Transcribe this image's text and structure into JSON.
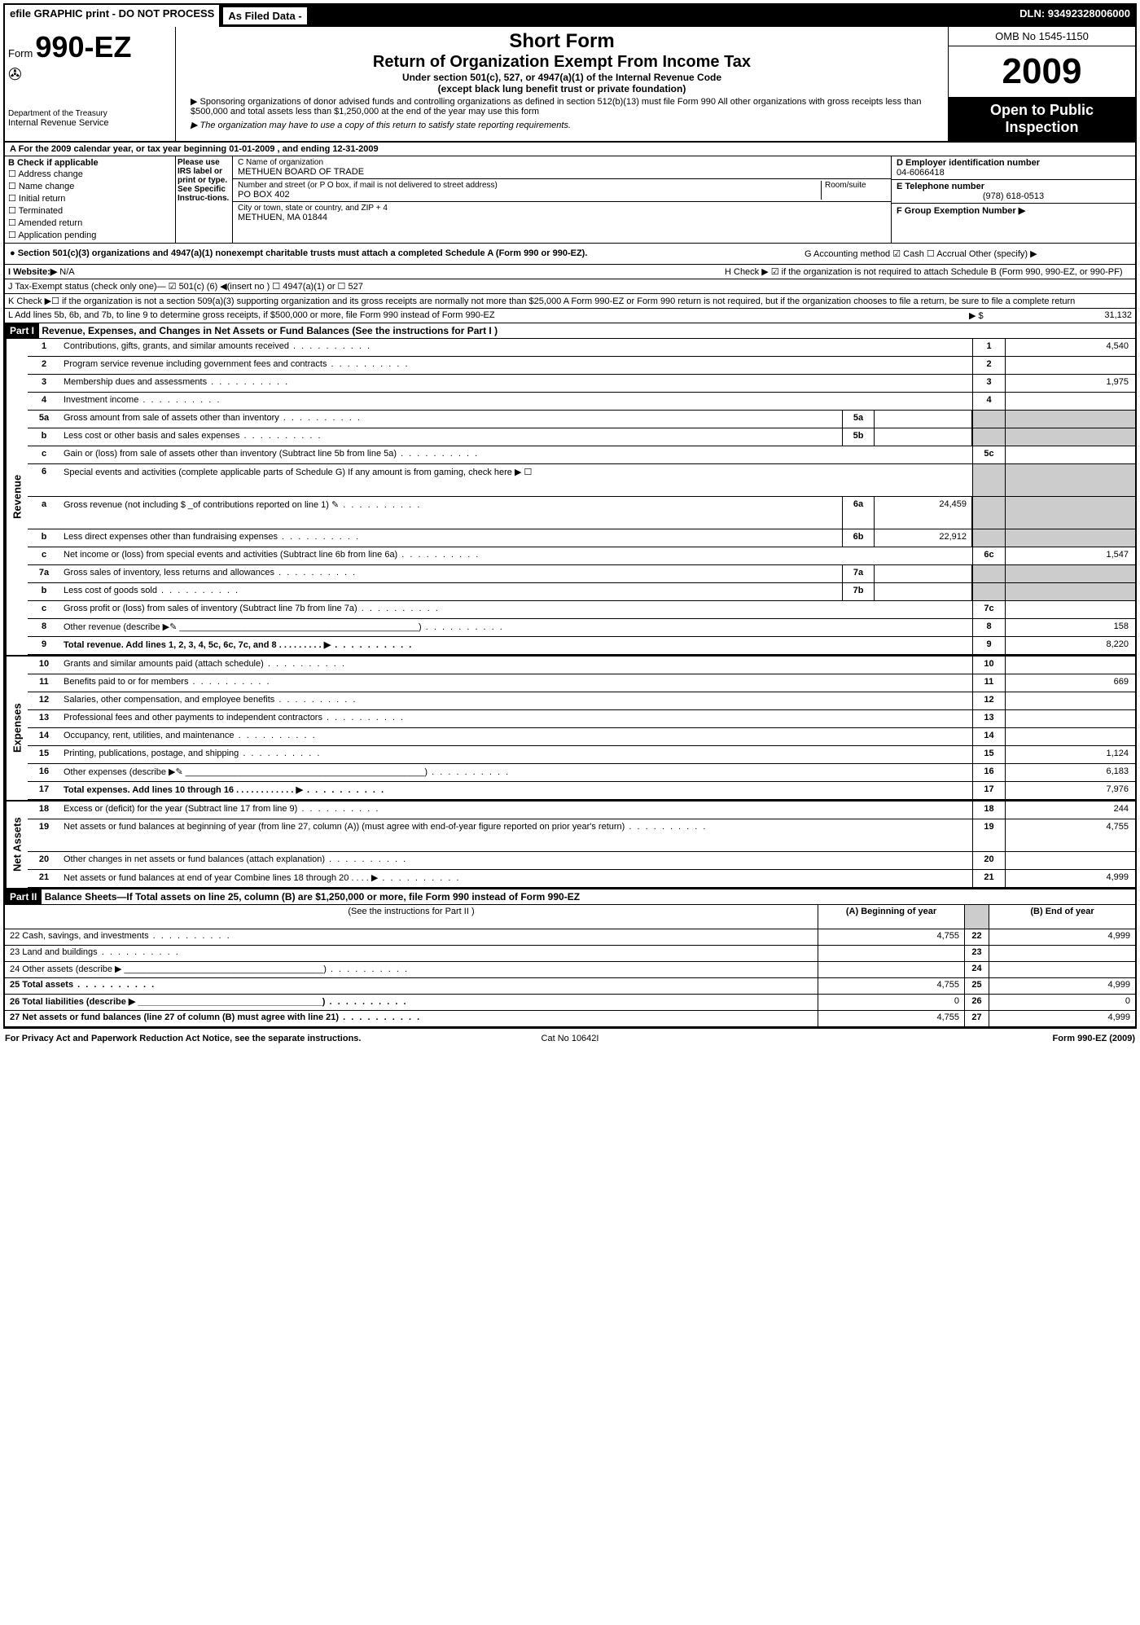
{
  "topbar": {
    "efile": "efile GRAPHIC print - DO NOT PROCESS",
    "asfiled": "As Filed Data -",
    "dln": "DLN: 93492328006000"
  },
  "header": {
    "form_prefix": "Form",
    "form_no": "990-EZ",
    "dept1": "Department of the Treasury",
    "dept2": "Internal Revenue Service",
    "title1": "Short Form",
    "title2": "Return of Organization Exempt From Income Tax",
    "sub1": "Under section 501(c), 527, or 4947(a)(1) of the Internal Revenue Code",
    "sub2": "(except black lung benefit trust or private foundation)",
    "note1": "▶ Sponsoring organizations of donor advised funds and controlling organizations as defined in section 512(b)(13) must file Form 990  All other organizations with gross receipts less than $500,000 and total assets less than $1,250,000 at the end of the year may use this form",
    "note2": "▶ The organization may have to use a copy of this return to satisfy state reporting requirements.",
    "omb": "OMB No  1545-1150",
    "year": "2009",
    "open": "Open to Public Inspection"
  },
  "row_a": "A  For the 2009 calendar year, or tax year beginning 01-01-2009           , and ending 12-31-2009",
  "col_b": {
    "title": "B  Check if applicable",
    "items": [
      "Address change",
      "Name change",
      "Initial return",
      "Terminated",
      "Amended return",
      "Application pending"
    ]
  },
  "col_irs": "Please use IRS label or print or type. See Specific Instruc-tions.",
  "col_c": {
    "name_lbl": "C Name of organization",
    "name": "METHUEN BOARD OF TRADE",
    "addr_lbl": "Number and street (or P O  box, if mail is not delivered to street address)",
    "room": "Room/suite",
    "addr": "PO BOX 402",
    "city_lbl": "City or town, state or country, and ZIP + 4",
    "city": "METHUEN, MA  01844"
  },
  "col_d": {
    "ein_lbl": "D Employer identification number",
    "ein": "04-6066418",
    "tel_lbl": "E Telephone number",
    "tel": "(978) 618-0513",
    "grp_lbl": "F Group Exemption Number  ▶"
  },
  "section501": "● Section 501(c)(3) organizations and 4947(a)(1) nonexempt charitable trusts must attach a completed Schedule A (Form 990 or 990-EZ).",
  "g_method": "G Accounting method      ☑ Cash   ☐ Accrual   Other (specify) ▶",
  "website_lbl": "I Website:▶",
  "website": "N/A",
  "h_check": "H  Check ▶  ☑  if the organization is not required to attach Schedule B (Form 990, 990-EZ, or 990-PF)",
  "j_status": "J Tax-Exempt status (check only one)— ☑ 501(c) (6) ◀(insert no ) ☐ 4947(a)(1) or ☐ 527",
  "k_check": "K Check ▶☐  if the organization is not a section 509(a)(3) supporting organization and its gross receipts are normally not more than $25,000  A Form 990-EZ or Form 990 return is not required, but if the organization chooses to file a return, be sure to file a complete return",
  "l_line": {
    "text": "L Add lines 5b, 6b, and 7b, to line 9 to determine gross receipts, if $500,000 or more, file Form 990 instead of Form 990-EZ",
    "arrow": "▶ $",
    "val": "31,132"
  },
  "part1": {
    "hdr": "Part I",
    "title": "Revenue, Expenses, and Changes in Net Assets or Fund Balances (See the instructions for Part I )"
  },
  "sections": {
    "revenue": "Revenue",
    "expenses": "Expenses",
    "netassets": "Net Assets"
  },
  "lines": [
    {
      "n": "1",
      "d": "Contributions, gifts, grants, and similar amounts received",
      "rn": "1",
      "v": "4,540"
    },
    {
      "n": "2",
      "d": "Program service revenue including government fees and contracts",
      "rn": "2",
      "v": ""
    },
    {
      "n": "3",
      "d": "Membership dues and assessments",
      "rn": "3",
      "v": "1,975"
    },
    {
      "n": "4",
      "d": "Investment income",
      "rn": "4",
      "v": ""
    },
    {
      "n": "5a",
      "d": "Gross amount from sale of assets other than inventory",
      "mn": "5a",
      "mv": "",
      "grey": true
    },
    {
      "n": "b",
      "d": "Less  cost or other basis and sales expenses",
      "mn": "5b",
      "mv": "",
      "grey": true
    },
    {
      "n": "c",
      "d": "Gain or (loss) from sale of assets other than inventory (Subtract line 5b from line 5a)",
      "rn": "5c",
      "v": ""
    },
    {
      "n": "6",
      "d": "Special events and activities (complete applicable parts of Schedule G)  If any amount is from gaming, check here ▶  ☐",
      "grey": true,
      "tall": true
    },
    {
      "n": "a",
      "d": "Gross revenue (not including $ _of contributions reported on line 1) ✎",
      "mn": "6a",
      "mv": "24,459",
      "grey": true,
      "tall": true
    },
    {
      "n": "b",
      "d": "Less  direct expenses other than fundraising expenses",
      "mn": "6b",
      "mv": "22,912",
      "grey": true
    },
    {
      "n": "c",
      "d": "Net income or (loss) from special events and activities (Subtract line 6b from line 6a)",
      "rn": "6c",
      "v": "1,547"
    },
    {
      "n": "7a",
      "d": "Gross sales of inventory, less returns and allowances",
      "mn": "7a",
      "mv": "",
      "grey": true
    },
    {
      "n": "b",
      "d": "Less  cost of goods sold",
      "mn": "7b",
      "mv": "",
      "grey": true
    },
    {
      "n": "c",
      "d": "Gross profit or (loss) from sales of inventory (Subtract line 7b from line 7a)",
      "rn": "7c",
      "v": ""
    },
    {
      "n": "8",
      "d": "Other revenue (describe ▶✎ ________________________________________________)",
      "rn": "8",
      "v": "158"
    },
    {
      "n": "9",
      "d": "Total revenue. Add lines 1, 2, 3, 4, 5c, 6c, 7c, and 8    .  .  .  .  .  .  .  .  .  ▶",
      "rn": "9",
      "v": "8,220",
      "bold": true
    }
  ],
  "exp_lines": [
    {
      "n": "10",
      "d": "Grants and similar amounts paid (attach schedule)",
      "rn": "10",
      "v": ""
    },
    {
      "n": "11",
      "d": "Benefits paid to or for members",
      "rn": "11",
      "v": "669"
    },
    {
      "n": "12",
      "d": "Salaries, other compensation, and employee benefits",
      "rn": "12",
      "v": ""
    },
    {
      "n": "13",
      "d": "Professional fees and other payments to independent contractors",
      "rn": "13",
      "v": ""
    },
    {
      "n": "14",
      "d": "Occupancy, rent, utilities, and maintenance",
      "rn": "14",
      "v": ""
    },
    {
      "n": "15",
      "d": "Printing, publications, postage, and shipping",
      "rn": "15",
      "v": "1,124"
    },
    {
      "n": "16",
      "d": "Other expenses (describe ▶✎ ________________________________________________)",
      "rn": "16",
      "v": "6,183"
    },
    {
      "n": "17",
      "d": "Total expenses. Add lines 10 through 16   .  .  .  .  .  .  .  .  .  .  .  .  ▶",
      "rn": "17",
      "v": "7,976",
      "bold": true
    }
  ],
  "na_lines": [
    {
      "n": "18",
      "d": "Excess or (deficit) for the year (Subtract line 17 from line 9)",
      "rn": "18",
      "v": "244"
    },
    {
      "n": "19",
      "d": "Net assets or fund balances at beginning of year (from line 27, column (A)) (must agree with end-of-year figure reported on prior year's return)",
      "rn": "19",
      "v": "4,755",
      "tall": true
    },
    {
      "n": "20",
      "d": "Other changes in net assets or fund balances (attach explanation)",
      "rn": "20",
      "v": ""
    },
    {
      "n": "21",
      "d": "Net assets or fund balances at end of year  Combine lines 18 through 20   .  .  .  .  ▶",
      "rn": "21",
      "v": "4,999"
    }
  ],
  "part2": {
    "hdr": "Part II",
    "title": "Balance Sheets—If Total assets on line 25, column (B) are $1,250,000 or more, file Form 990 instead of Form 990-EZ"
  },
  "bs_hdr": {
    "instr": "(See the instructions for Part II )",
    "a": "(A) Beginning of year",
    "b": "(B) End of year"
  },
  "bs_lines": [
    {
      "n": "22",
      "d": "22  Cash, savings, and investments",
      "a": "4,755",
      "b": "4,999"
    },
    {
      "n": "23",
      "d": "23  Land and buildings",
      "a": "",
      "b": ""
    },
    {
      "n": "24",
      "d": "24  Other assets (describe ▶ ________________________________________)",
      "a": "",
      "b": ""
    },
    {
      "n": "25",
      "d": "25  Total assets",
      "a": "4,755",
      "b": "4,999",
      "bold": true
    },
    {
      "n": "26",
      "d": "26  Total liabilities (describe ▶ _____________________________________)",
      "a": "0",
      "b": "0",
      "bold": true
    },
    {
      "n": "27",
      "d": "27  Net assets or fund balances (line 27 of column (B) must agree with line 21)",
      "a": "4,755",
      "b": "4,999",
      "bold": true
    }
  ],
  "footer": {
    "left": "For Privacy Act and Paperwork Reduction Act Notice, see the separate instructions.",
    "mid": "Cat No 10642I",
    "right": "Form 990-EZ (2009)"
  }
}
